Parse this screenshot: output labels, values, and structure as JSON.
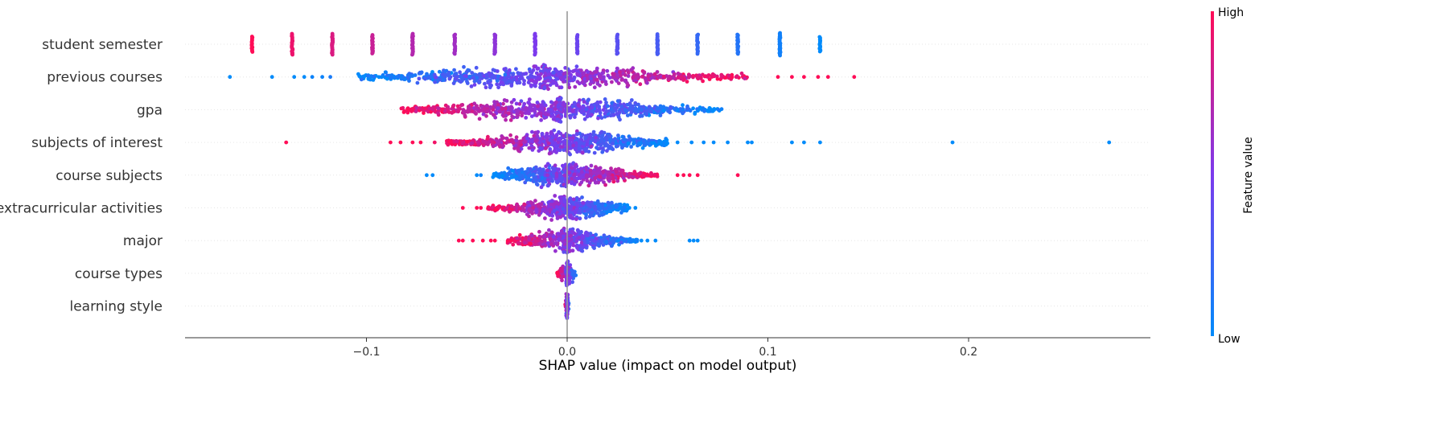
{
  "chart_data": {
    "type": "scatter",
    "subtype": "shap-beeswarm",
    "xlabel": "SHAP value (impact on model output)",
    "xlim": [
      -0.19,
      0.29
    ],
    "x_ticks": [
      -0.1,
      0.0,
      0.1,
      0.2
    ],
    "x_tick_labels": [
      "−0.1",
      "0.0",
      "0.1",
      "0.2"
    ],
    "grid": false,
    "zero_line": true,
    "colorbar": {
      "label": "Feature value",
      "high_label": "High",
      "low_label": "Low",
      "high_color": "#ff0d57",
      "mid_color": "#7c3aed",
      "low_color": "#008bfb"
    },
    "features": [
      {
        "name": "student semester",
        "kind": "discrete",
        "x": [
          -0.157,
          -0.137,
          -0.117,
          -0.097,
          -0.077,
          -0.056,
          -0.036,
          -0.016,
          0.005,
          0.025,
          0.045,
          0.065,
          0.085,
          0.106,
          0.126
        ],
        "feature_value": [
          1.0,
          0.93,
          0.86,
          0.79,
          0.71,
          0.64,
          0.57,
          0.5,
          0.43,
          0.36,
          0.29,
          0.21,
          0.14,
          0.07,
          0.0
        ],
        "density": [
          0.35,
          0.7,
          0.7,
          0.55,
          0.7,
          0.6,
          0.6,
          0.7,
          0.55,
          0.6,
          0.65,
          0.6,
          0.6,
          0.8,
          0.3
        ]
      },
      {
        "name": "previous courses",
        "kind": "spread",
        "min": -0.168,
        "max": 0.143,
        "center": -0.012,
        "core_left": -0.105,
        "core_right": 0.09,
        "peak": -0.012,
        "peak_width": 0.004,
        "low_side": "left",
        "outliers": [
          {
            "x": -0.168,
            "v": 0.0
          },
          {
            "x": -0.147,
            "v": 0.0
          },
          {
            "x": -0.136,
            "v": 0.0
          },
          {
            "x": -0.131,
            "v": 0.0
          },
          {
            "x": -0.127,
            "v": 0.05
          },
          {
            "x": -0.122,
            "v": 0.05
          },
          {
            "x": -0.118,
            "v": 0.1
          },
          {
            "x": 0.105,
            "v": 1.0
          },
          {
            "x": 0.112,
            "v": 1.0
          },
          {
            "x": 0.118,
            "v": 1.0
          },
          {
            "x": 0.125,
            "v": 1.0
          },
          {
            "x": 0.13,
            "v": 1.0
          },
          {
            "x": 0.143,
            "v": 1.0
          }
        ]
      },
      {
        "name": "gpa",
        "kind": "spread",
        "min": -0.083,
        "max": 0.077,
        "center": -0.004,
        "core_left": -0.083,
        "core_right": 0.077,
        "peak": -0.004,
        "peak_width": 0.002,
        "low_side": "right",
        "outliers": []
      },
      {
        "name": "subjects of interest",
        "kind": "spread",
        "min": -0.14,
        "max": 0.27,
        "center": 0.0,
        "core_left": -0.06,
        "core_right": 0.05,
        "peak": 0.0,
        "peak_width": 0.02,
        "low_side": "right",
        "outliers": [
          {
            "x": -0.14,
            "v": 1.0
          },
          {
            "x": -0.088,
            "v": 1.0
          },
          {
            "x": -0.083,
            "v": 1.0
          },
          {
            "x": -0.077,
            "v": 1.0
          },
          {
            "x": -0.073,
            "v": 1.0
          },
          {
            "x": -0.066,
            "v": 0.95
          },
          {
            "x": 0.055,
            "v": 0.0
          },
          {
            "x": 0.062,
            "v": 0.0
          },
          {
            "x": 0.068,
            "v": 0.0
          },
          {
            "x": 0.073,
            "v": 0.0
          },
          {
            "x": 0.08,
            "v": 0.0
          },
          {
            "x": 0.09,
            "v": 0.0
          },
          {
            "x": 0.092,
            "v": 0.0
          },
          {
            "x": 0.112,
            "v": 0.0
          },
          {
            "x": 0.118,
            "v": 0.0
          },
          {
            "x": 0.126,
            "v": 0.0
          },
          {
            "x": 0.192,
            "v": 0.0
          },
          {
            "x": 0.27,
            "v": 0.0
          }
        ]
      },
      {
        "name": "course subjects",
        "kind": "spread",
        "min": -0.07,
        "max": 0.085,
        "center": 0.0,
        "core_left": -0.037,
        "core_right": 0.045,
        "peak": 0.0,
        "peak_width": 0.015,
        "low_side": "left",
        "outliers": [
          {
            "x": -0.07,
            "v": 0.0
          },
          {
            "x": -0.067,
            "v": 0.0
          },
          {
            "x": -0.045,
            "v": 0.0
          },
          {
            "x": -0.043,
            "v": 0.05
          },
          {
            "x": 0.055,
            "v": 1.0
          },
          {
            "x": 0.058,
            "v": 1.0
          },
          {
            "x": 0.061,
            "v": 1.0
          },
          {
            "x": 0.065,
            "v": 1.0
          },
          {
            "x": 0.085,
            "v": 1.0
          }
        ]
      },
      {
        "name": "extracurricular activities",
        "kind": "spread",
        "min": -0.052,
        "max": 0.034,
        "center": 0.0,
        "core_left": -0.04,
        "core_right": 0.03,
        "peak": 0.0,
        "peak_width": 0.012,
        "low_side": "right",
        "outliers": [
          {
            "x": -0.052,
            "v": 1.0
          },
          {
            "x": -0.045,
            "v": 1.0
          },
          {
            "x": -0.043,
            "v": 1.0
          },
          {
            "x": 0.031,
            "v": 0.0
          },
          {
            "x": 0.034,
            "v": 0.0
          }
        ]
      },
      {
        "name": "major",
        "kind": "spread",
        "min": -0.054,
        "max": 0.065,
        "center": 0.0,
        "core_left": -0.03,
        "core_right": 0.035,
        "peak": 0.0,
        "peak_width": 0.004,
        "low_side": "right",
        "outliers": [
          {
            "x": -0.054,
            "v": 1.0
          },
          {
            "x": -0.052,
            "v": 1.0
          },
          {
            "x": -0.047,
            "v": 1.0
          },
          {
            "x": -0.042,
            "v": 1.0
          },
          {
            "x": -0.038,
            "v": 1.0
          },
          {
            "x": -0.036,
            "v": 1.0
          },
          {
            "x": 0.037,
            "v": 0.0
          },
          {
            "x": 0.04,
            "v": 0.0
          },
          {
            "x": 0.044,
            "v": 0.0
          },
          {
            "x": 0.061,
            "v": 0.0
          },
          {
            "x": 0.063,
            "v": 0.0
          },
          {
            "x": 0.065,
            "v": 0.0
          }
        ]
      },
      {
        "name": "course types",
        "kind": "spread",
        "min": -0.005,
        "max": 0.005,
        "center": 0.0,
        "core_left": -0.005,
        "core_right": 0.005,
        "peak": 0.0,
        "peak_width": 0.001,
        "low_side": "right",
        "outliers": []
      },
      {
        "name": "learning style",
        "kind": "spread",
        "min": -0.001,
        "max": 0.001,
        "center": 0.0,
        "core_left": -0.001,
        "core_right": 0.001,
        "peak": 0.0,
        "peak_width": 0.0005,
        "low_side": "right",
        "outliers": []
      }
    ]
  }
}
